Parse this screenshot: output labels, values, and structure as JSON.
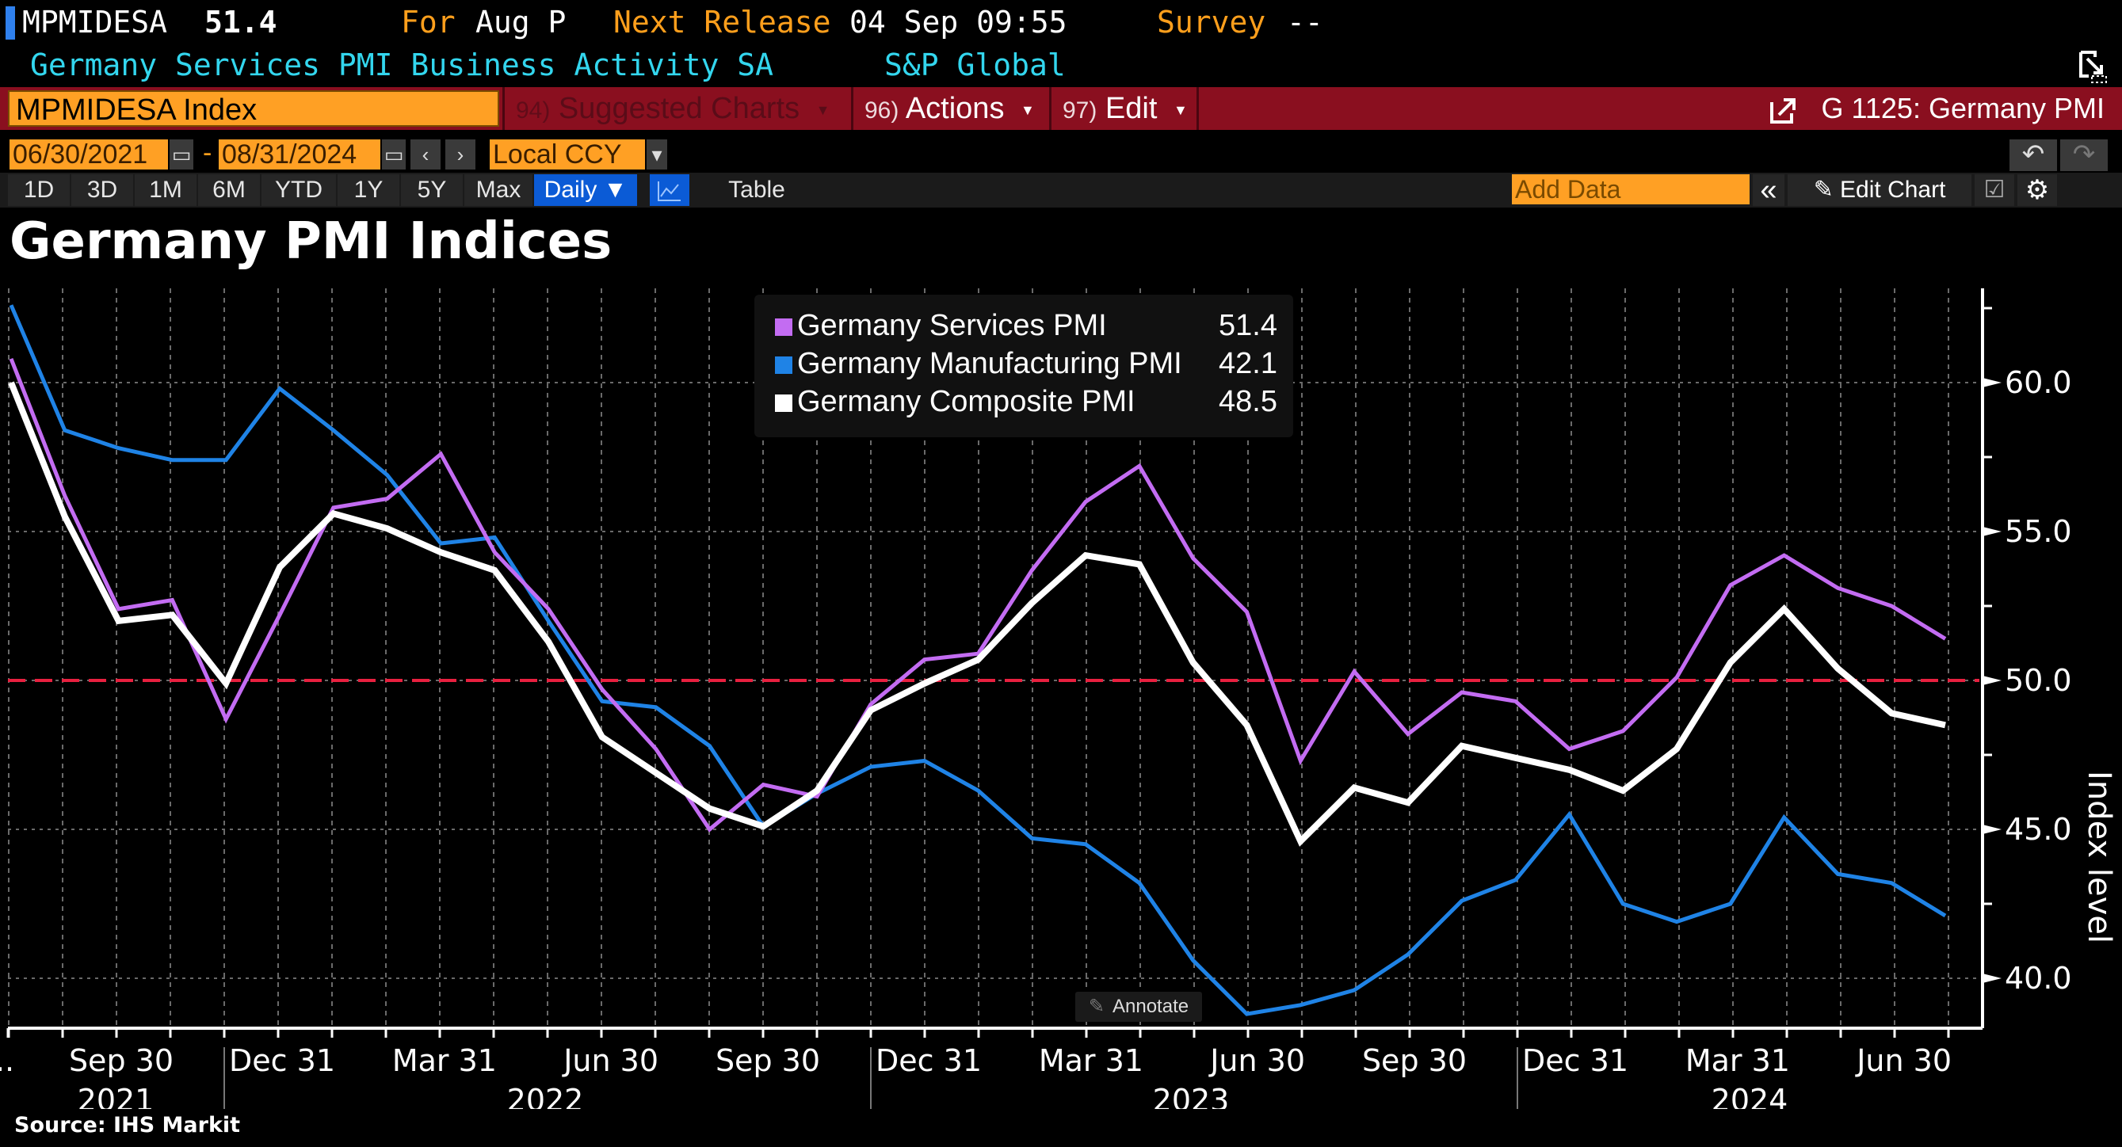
{
  "header": {
    "ticker": "MPMIDESA",
    "last_value": "51.4",
    "for_label": "For",
    "for_value": "Aug P",
    "next_release_label": "Next Release",
    "next_release_value": "04 Sep 09:55",
    "survey_label": "Survey",
    "survey_value": "--",
    "description": "Germany Services PMI Business Activity SA",
    "source": "S&P Global"
  },
  "command_bar": {
    "security": "MPMIDESA Index",
    "menus": [
      {
        "num": "94)",
        "label": "Suggested Charts",
        "enabled": false
      },
      {
        "num": "96)",
        "label": "Actions",
        "enabled": true
      },
      {
        "num": "97)",
        "label": "Edit",
        "enabled": true
      }
    ],
    "page_title": "G 1125: Germany PMI"
  },
  "date_range": {
    "start": "06/30/2021",
    "end": "08/31/2024",
    "separator": "-",
    "currency": "Local CCY"
  },
  "periods": [
    "1D",
    "3D",
    "1M",
    "6M",
    "YTD",
    "1Y",
    "5Y",
    "Max"
  ],
  "frequency": "Daily ▼",
  "table_label": "Table",
  "add_data_placeholder": "Add Data",
  "edit_chart_label": "Edit Chart",
  "annotate_label": "Annotate",
  "icons": {
    "date_picker": "calendar-icon",
    "prev": "‹",
    "next": "›",
    "dropdown": "▾",
    "undo": "↶",
    "redo": "↷",
    "collapse": "«",
    "edit": "✎",
    "settings": "⚙"
  },
  "colors": {
    "services": "#c36cf2",
    "manufacturing": "#1f83e6",
    "composite": "#ffffff",
    "threshold": "#e8203f",
    "orange": "#ffa024",
    "command_bar": "#8a0f1f"
  },
  "chart_data": {
    "type": "line",
    "title": "Germany PMI Indices",
    "xlabel": "",
    "ylabel": "Index level",
    "source": "Source: IHS Markit",
    "ylim": [
      38.5,
      63.5
    ],
    "yticks": [
      40.0,
      45.0,
      50.0,
      55.0,
      60.0
    ],
    "ytick_labels": [
      "40.0",
      "45.0",
      "50.0",
      "55.0",
      "60.0"
    ],
    "x": [
      "2021-08",
      "2021-09",
      "2021-10",
      "2021-11",
      "2021-12",
      "2022-01",
      "2022-02",
      "2022-03",
      "2022-04",
      "2022-05",
      "2022-06",
      "2022-07",
      "2022-08",
      "2022-09",
      "2022-10",
      "2022-11",
      "2022-12",
      "2023-01",
      "2023-02",
      "2023-03",
      "2023-04",
      "2023-05",
      "2023-06",
      "2023-07",
      "2023-08",
      "2023-09",
      "2023-10",
      "2023-11",
      "2023-12",
      "2024-01",
      "2024-02",
      "2024-03",
      "2024-04",
      "2024-05",
      "2024-06",
      "2024-07",
      "2024-08"
    ],
    "xtick_labels": [
      "Sep 30",
      "Dec 31",
      "Mar 31",
      "Jun 30",
      "Sep 30",
      "Dec 31",
      "Mar 31",
      "Jun 30",
      "Sep 30",
      "Dec 31",
      "Mar 31",
      "Jun 30",
      "..."
    ],
    "year_labels": [
      "2021",
      "2022",
      "2023",
      "2024"
    ],
    "grid": true,
    "legend_position": "top-center",
    "reference_line": {
      "y": 50.0,
      "style": "dashed"
    },
    "series": [
      {
        "name": "Germany Services PMI",
        "last": "51.4",
        "values": [
          60.8,
          56.2,
          52.4,
          52.7,
          48.7,
          52.2,
          55.8,
          56.1,
          57.6,
          54.3,
          52.4,
          49.7,
          47.7,
          45.0,
          46.5,
          46.1,
          49.2,
          50.7,
          50.9,
          53.7,
          56.0,
          57.2,
          54.1,
          52.3,
          47.3,
          50.3,
          48.2,
          49.6,
          49.3,
          47.7,
          48.3,
          50.1,
          53.2,
          54.2,
          53.1,
          52.5,
          51.4
        ]
      },
      {
        "name": "Germany Manufacturing PMI",
        "last": "42.1",
        "values": [
          62.6,
          58.4,
          57.8,
          57.4,
          57.4,
          59.8,
          58.4,
          56.9,
          54.6,
          54.8,
          52.0,
          49.3,
          49.1,
          47.8,
          45.1,
          46.2,
          47.1,
          47.3,
          46.3,
          44.7,
          44.5,
          43.2,
          40.6,
          38.8,
          39.1,
          39.6,
          40.8,
          42.6,
          43.3,
          45.5,
          42.5,
          41.9,
          42.5,
          45.4,
          43.5,
          43.2,
          42.1
        ]
      },
      {
        "name": "Germany Composite PMI",
        "last": "48.5",
        "values": [
          60.0,
          55.5,
          52.0,
          52.2,
          49.9,
          53.8,
          55.6,
          55.1,
          54.3,
          53.7,
          51.3,
          48.1,
          46.9,
          45.7,
          45.1,
          46.3,
          49.0,
          49.9,
          50.7,
          52.6,
          54.2,
          53.9,
          50.6,
          48.5,
          44.6,
          46.4,
          45.9,
          47.8,
          47.4,
          47.0,
          46.3,
          47.7,
          50.6,
          52.4,
          50.4,
          48.9,
          48.5
        ]
      }
    ]
  }
}
